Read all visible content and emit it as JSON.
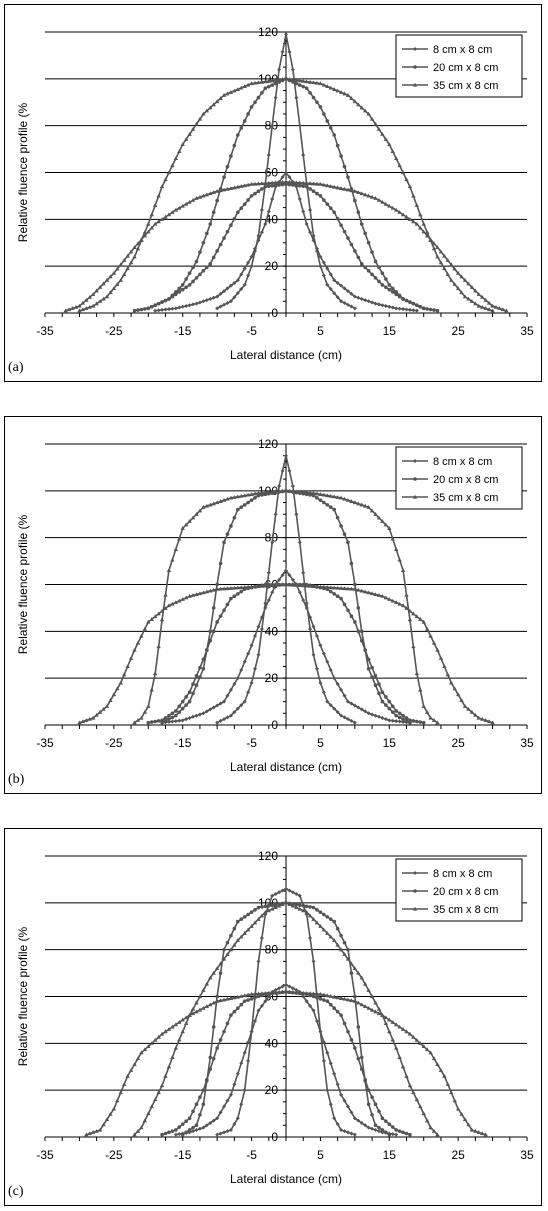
{
  "chart_data": [
    {
      "type": "line",
      "panel_label": "(a)",
      "xlabel": "Lateral distance (cm)",
      "ylabel": "Relative fluence profile (%",
      "xlim": [
        -35,
        35
      ],
      "ylim": [
        0,
        120
      ],
      "x_ticks": [
        "-35",
        "-25",
        "-15",
        "-5",
        "5",
        "15",
        "25",
        "35"
      ],
      "y_ticks": [
        "0",
        "20",
        "40",
        "60",
        "80",
        "100",
        "120"
      ],
      "grid": "horizontal",
      "legend_position": "top-right",
      "series": [
        {
          "name": "8 cm x 8 cm",
          "marker": "diamond",
          "curves": [
            {
              "x": [
                -19,
                -16,
                -13,
                -10,
                -7,
                -5,
                -3,
                -1.5,
                0,
                1.5,
                3,
                5,
                7,
                10,
                13,
                16,
                19
              ],
              "y": [
                1,
                2,
                4,
                7,
                14,
                24,
                38,
                54,
                60,
                54,
                38,
                24,
                14,
                7,
                4,
                2,
                1
              ]
            },
            {
              "x": [
                -10,
                -8,
                -6,
                -5,
                -4,
                -3,
                -2,
                -1,
                0,
                1,
                2,
                3,
                4,
                5,
                6,
                8,
                10
              ],
              "y": [
                2,
                5,
                12,
                20,
                33,
                55,
                80,
                104,
                119,
                104,
                80,
                55,
                33,
                20,
                12,
                5,
                2
              ]
            }
          ]
        },
        {
          "name": "20 cm x 8 cm",
          "marker": "circle",
          "curves": [
            {
              "x": [
                -22,
                -20,
                -17,
                -14,
                -11,
                -9,
                -7,
                -5,
                -3,
                0,
                3,
                5,
                7,
                9,
                11,
                14,
                17,
                20,
                22
              ],
              "y": [
                1,
                2,
                6,
                12,
                21,
                32,
                43,
                50,
                54,
                55,
                54,
                50,
                43,
                32,
                21,
                12,
                6,
                2,
                1
              ]
            },
            {
              "x": [
                -20,
                -17,
                -15,
                -13,
                -11,
                -9,
                -7,
                -5,
                -3,
                0,
                3,
                5,
                7,
                9,
                11,
                13,
                15,
                17,
                20
              ],
              "y": [
                2,
                6,
                12,
                22,
                38,
                58,
                76,
                88,
                96,
                100,
                96,
                88,
                76,
                58,
                38,
                22,
                12,
                6,
                2
              ]
            }
          ]
        },
        {
          "name": "35 cm x 8 cm",
          "marker": "triangle",
          "curves": [
            {
              "x": [
                -32,
                -30,
                -28,
                -25,
                -22,
                -19,
                -16,
                -13,
                -10,
                -5,
                0,
                5,
                10,
                13,
                16,
                19,
                22,
                25,
                28,
                30,
                32
              ],
              "y": [
                1,
                3,
                8,
                17,
                28,
                38,
                44,
                49,
                52,
                55,
                56,
                55,
                52,
                49,
                44,
                38,
                28,
                17,
                8,
                3,
                1
              ]
            },
            {
              "x": [
                -30,
                -28,
                -26,
                -24,
                -22,
                -20,
                -18,
                -15,
                -12,
                -9,
                -5,
                0,
                5,
                9,
                12,
                15,
                18,
                20,
                22,
                24,
                26,
                28,
                30
              ],
              "y": [
                1,
                3,
                7,
                14,
                24,
                38,
                54,
                72,
                85,
                93,
                98,
                100,
                98,
                93,
                85,
                72,
                54,
                38,
                24,
                14,
                7,
                3,
                1
              ]
            }
          ]
        }
      ],
      "colors": {
        "series": "#555555",
        "grid": "#000000"
      }
    },
    {
      "type": "line",
      "panel_label": "(b)",
      "xlabel": "Lateral distance (cm)",
      "ylabel": "Relative fluence profile (%",
      "xlim": [
        -35,
        35
      ],
      "ylim": [
        0,
        120
      ],
      "x_ticks": [
        "-35",
        "-25",
        "-15",
        "-5",
        "5",
        "15",
        "25",
        "35"
      ],
      "y_ticks": [
        "0",
        "20",
        "40",
        "60",
        "80",
        "100",
        "120"
      ],
      "grid": "horizontal",
      "legend_position": "top-right",
      "series": [
        {
          "name": "8 cm x 8 cm",
          "marker": "diamond",
          "curves": [
            {
              "x": [
                -18,
                -15,
                -12,
                -9,
                -7,
                -5,
                -3,
                -1.5,
                0,
                1.5,
                3,
                5,
                7,
                9,
                12,
                15,
                18
              ],
              "y": [
                1,
                2,
                5,
                10,
                20,
                34,
                50,
                60,
                66,
                60,
                50,
                34,
                20,
                10,
                5,
                2,
                1
              ]
            },
            {
              "x": [
                -10,
                -8,
                -6,
                -5,
                -4,
                -3,
                -2,
                -1,
                0,
                1,
                2,
                3,
                4,
                5,
                6,
                8,
                10
              ],
              "y": [
                1,
                4,
                10,
                18,
                30,
                52,
                78,
                102,
                115,
                102,
                78,
                52,
                30,
                18,
                10,
                4,
                1
              ]
            }
          ]
        },
        {
          "name": "20 cm x 8 cm",
          "marker": "circle",
          "curves": [
            {
              "x": [
                -20,
                -18,
                -16,
                -14,
                -12,
                -10,
                -8,
                -6,
                -3,
                0,
                3,
                6,
                8,
                10,
                12,
                14,
                16,
                18,
                20
              ],
              "y": [
                1,
                2,
                6,
                14,
                28,
                44,
                54,
                58,
                60,
                60,
                60,
                58,
                54,
                44,
                28,
                14,
                6,
                2,
                1
              ]
            },
            {
              "x": [
                -18,
                -16,
                -14,
                -12,
                -11,
                -10,
                -9,
                -7,
                -4,
                0,
                4,
                7,
                9,
                10,
                11,
                12,
                14,
                16,
                18
              ],
              "y": [
                1,
                4,
                10,
                24,
                40,
                60,
                78,
                92,
                98,
                100,
                98,
                92,
                78,
                60,
                40,
                24,
                10,
                4,
                1
              ]
            }
          ]
        },
        {
          "name": "35 cm x 8 cm",
          "marker": "triangle",
          "curves": [
            {
              "x": [
                -30,
                -28,
                -26,
                -24,
                -22,
                -20,
                -17,
                -14,
                -10,
                -5,
                0,
                5,
                10,
                14,
                17,
                20,
                22,
                24,
                26,
                28,
                30
              ],
              "y": [
                1,
                3,
                8,
                18,
                32,
                44,
                51,
                55,
                58,
                59,
                60,
                59,
                58,
                55,
                51,
                44,
                32,
                18,
                8,
                3,
                1
              ]
            },
            {
              "x": [
                -22,
                -21,
                -20,
                -19,
                -18,
                -17,
                -15,
                -12,
                -8,
                -4,
                0,
                4,
                8,
                12,
                15,
                17,
                18,
                19,
                20,
                21,
                22
              ],
              "y": [
                1,
                3,
                8,
                22,
                45,
                66,
                84,
                93,
                97,
                99,
                100,
                99,
                97,
                93,
                84,
                66,
                45,
                22,
                8,
                3,
                1
              ]
            }
          ]
        }
      ],
      "colors": {
        "series": "#555555",
        "grid": "#000000"
      }
    },
    {
      "type": "line",
      "panel_label": "(c)",
      "xlabel": "Lateral distance (cm)",
      "ylabel": "Relative fluence profile (%",
      "xlim": [
        -35,
        35
      ],
      "ylim": [
        0,
        120
      ],
      "x_ticks": [
        "-35",
        "-25",
        "-15",
        "-5",
        "5",
        "15",
        "25",
        "35"
      ],
      "y_ticks": [
        "0",
        "20",
        "40",
        "60",
        "80",
        "100",
        "120"
      ],
      "grid": "horizontal",
      "legend_position": "top-right",
      "series": [
        {
          "name": "8 cm x 8 cm",
          "marker": "diamond",
          "curves": [
            {
              "x": [
                -16,
                -14,
                -12,
                -10,
                -8,
                -6,
                -4,
                -2,
                0,
                2,
                4,
                6,
                8,
                10,
                12,
                14,
                16
              ],
              "y": [
                1,
                2,
                4,
                8,
                18,
                36,
                54,
                62,
                65,
                62,
                54,
                36,
                18,
                8,
                4,
                2,
                1
              ]
            },
            {
              "x": [
                -10,
                -8,
                -7,
                -6,
                -5,
                -4,
                -3,
                -2,
                0,
                2,
                3,
                4,
                5,
                6,
                7,
                8,
                10
              ],
              "y": [
                1,
                3,
                8,
                20,
                45,
                75,
                95,
                103,
                106,
                103,
                95,
                75,
                45,
                20,
                8,
                3,
                1
              ]
            }
          ]
        },
        {
          "name": "20 cm x 8 cm",
          "marker": "circle",
          "curves": [
            {
              "x": [
                -18,
                -16,
                -14,
                -12,
                -10,
                -8,
                -6,
                -3,
                0,
                3,
                6,
                8,
                10,
                12,
                14,
                16,
                18
              ],
              "y": [
                1,
                3,
                8,
                20,
                38,
                52,
                58,
                61,
                62,
                61,
                58,
                52,
                38,
                20,
                8,
                3,
                1
              ]
            },
            {
              "x": [
                -15,
                -13,
                -12,
                -11,
                -10,
                -9,
                -7,
                -4,
                0,
                4,
                7,
                9,
                10,
                11,
                12,
                13,
                15
              ],
              "y": [
                1,
                5,
                14,
                34,
                60,
                80,
                92,
                98,
                100,
                98,
                92,
                80,
                60,
                34,
                14,
                5,
                1
              ]
            }
          ]
        },
        {
          "name": "35 cm x 8 cm",
          "marker": "triangle",
          "curves": [
            {
              "x": [
                -29,
                -27,
                -25,
                -23,
                -21,
                -18,
                -14,
                -10,
                -5,
                0,
                5,
                10,
                14,
                18,
                21,
                23,
                25,
                27,
                29
              ],
              "y": [
                1,
                3,
                12,
                26,
                36,
                44,
                52,
                58,
                61,
                62,
                61,
                58,
                52,
                44,
                36,
                26,
                12,
                3,
                1
              ]
            },
            {
              "x": [
                -22,
                -21,
                -20,
                -18,
                -16,
                -14,
                -11,
                -7,
                -3,
                0,
                3,
                7,
                11,
                14,
                16,
                18,
                20,
                21,
                22
              ],
              "y": [
                1,
                4,
                10,
                22,
                38,
                52,
                68,
                84,
                96,
                100,
                96,
                84,
                68,
                52,
                38,
                22,
                10,
                4,
                1
              ]
            }
          ]
        }
      ],
      "colors": {
        "series": "#555555",
        "grid": "#000000"
      }
    }
  ]
}
